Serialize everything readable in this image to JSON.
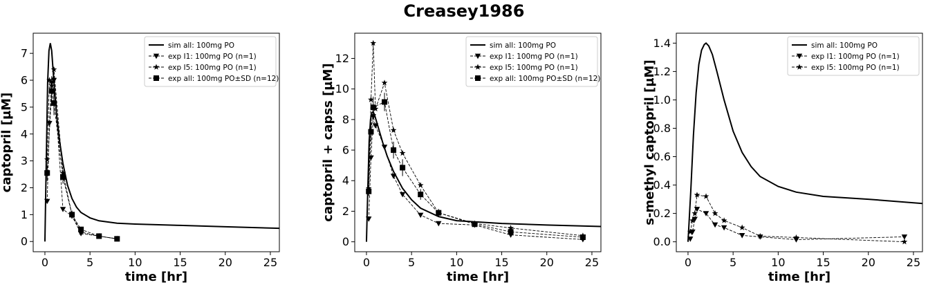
{
  "figure": {
    "title": "Creasey1986"
  },
  "chart_data": [
    {
      "type": "line",
      "xlabel": "time [hr]",
      "ylabel": "captopril [µM]",
      "xlim": [
        -1.3,
        26
      ],
      "ylim": [
        -0.38,
        7.75
      ],
      "xticks": [
        0,
        5,
        10,
        15,
        20,
        25
      ],
      "yticks": [
        0,
        1,
        2,
        3,
        4,
        5,
        6,
        7
      ],
      "legend_position": "top-right",
      "series": [
        {
          "name": "sim all: 100mg PO",
          "style": "solid",
          "marker": "none",
          "x": [
            0,
            0.15,
            0.3,
            0.45,
            0.6,
            0.75,
            0.9,
            1.1,
            1.3,
            1.6,
            2.0,
            2.5,
            3.0,
            3.5,
            4.0,
            5.0,
            6.0,
            8.0,
            10.0,
            15.0,
            20.0,
            26.0
          ],
          "y": [
            0,
            3.0,
            5.9,
            7.1,
            7.38,
            7.1,
            6.4,
            5.5,
            4.7,
            3.8,
            2.9,
            2.1,
            1.6,
            1.28,
            1.08,
            0.88,
            0.77,
            0.68,
            0.65,
            0.6,
            0.55,
            0.49
          ]
        },
        {
          "name": "exp I1: 100mg PO (n=1)",
          "style": "dashed",
          "marker": "triangle-down",
          "x": [
            0.25,
            0.5,
            0.75,
            1.0,
            2.0,
            3.0,
            4.0,
            6.0,
            8.0
          ],
          "y": [
            1.5,
            4.4,
            5.9,
            6.0,
            1.2,
            0.95,
            0.3,
            0.2,
            0.1
          ]
        },
        {
          "name": "exp I5: 100mg PO (n=1)",
          "style": "dashed",
          "marker": "star",
          "x": [
            0.25,
            0.5,
            0.75,
            1.0,
            2.0,
            3.0,
            4.0,
            6.0,
            8.0
          ],
          "y": [
            3.05,
            6.0,
            5.8,
            6.4,
            2.55,
            1.0,
            0.35,
            0.2,
            0.1
          ]
        },
        {
          "name": "exp all: 100mg PO±SD (n=12)",
          "style": "dashed",
          "marker": "square",
          "x": [
            0.25,
            0.75,
            1.0,
            2.0,
            3.0,
            4.0,
            6.0,
            8.0
          ],
          "y": [
            2.55,
            5.6,
            5.15,
            2.4,
            1.0,
            0.45,
            0.2,
            0.1
          ],
          "sd": [
            0.3,
            0.55,
            0.45,
            0.25,
            0.15,
            0.1,
            0.05,
            0.04
          ]
        }
      ]
    },
    {
      "type": "line",
      "xlabel": "time [hr]",
      "ylabel": "captopril + capss [µM]",
      "xlim": [
        -1.3,
        26
      ],
      "ylim": [
        -0.65,
        13.65
      ],
      "xticks": [
        0,
        5,
        10,
        15,
        20,
        25
      ],
      "yticks": [
        0,
        2,
        4,
        6,
        8,
        10,
        12
      ],
      "legend_position": "top-right",
      "series": [
        {
          "name": "sim all: 100mg PO",
          "style": "solid",
          "marker": "none",
          "x": [
            0,
            0.15,
            0.3,
            0.45,
            0.6,
            0.75,
            0.9,
            1.1,
            1.4,
            1.8,
            2.3,
            3.0,
            4.0,
            5.0,
            6.0,
            8.0,
            10.0,
            15.0,
            20.0,
            26.0
          ],
          "y": [
            0,
            3.5,
            6.6,
            8.0,
            8.45,
            8.5,
            8.3,
            7.9,
            7.3,
            6.5,
            5.6,
            4.6,
            3.5,
            2.75,
            2.2,
            1.65,
            1.38,
            1.2,
            1.1,
            1.0
          ]
        },
        {
          "name": "exp I1: 100mg PO (n=1)",
          "style": "dashed",
          "marker": "triangle-down",
          "x": [
            0.25,
            0.5,
            0.75,
            1.0,
            2.0,
            3.0,
            4.0,
            6.0,
            8.0,
            12.0,
            16.0,
            24.0
          ],
          "y": [
            1.5,
            5.5,
            8.2,
            7.6,
            6.2,
            4.3,
            3.1,
            1.75,
            1.2,
            1.1,
            0.45,
            0.15
          ]
        },
        {
          "name": "exp I5: 100mg PO (n=1)",
          "style": "dashed",
          "marker": "star",
          "x": [
            0.25,
            0.5,
            0.75,
            1.0,
            2.0,
            3.0,
            4.0,
            6.0,
            8.0,
            12.0,
            16.0,
            24.0
          ],
          "y": [
            3.5,
            9.3,
            13.0,
            8.7,
            10.4,
            7.3,
            5.8,
            3.7,
            1.9,
            1.2,
            0.9,
            0.4
          ]
        },
        {
          "name": "exp all: 100mg PO±SD (n=12)",
          "style": "dashed",
          "marker": "square",
          "x": [
            0.25,
            0.5,
            0.75,
            2.0,
            3.0,
            4.0,
            6.0,
            8.0,
            12.0,
            16.0,
            24.0
          ],
          "y": [
            3.3,
            7.2,
            8.8,
            9.15,
            6.0,
            4.85,
            3.1,
            1.9,
            1.15,
            0.65,
            0.3
          ],
          "sd": [
            0.3,
            0.6,
            0.7,
            0.6,
            0.55,
            0.55,
            0.35,
            0.25,
            0.15,
            0.1,
            0.1
          ]
        }
      ]
    },
    {
      "type": "line",
      "xlabel": "time [hr]",
      "ylabel": "s-methyl captopril [µM]",
      "xlim": [
        -1.3,
        26
      ],
      "ylim": [
        -0.07,
        1.47
      ],
      "xticks": [
        0,
        5,
        10,
        15,
        20,
        25
      ],
      "yticks": [
        0.0,
        0.2,
        0.4,
        0.6,
        0.8,
        1.0,
        1.2,
        1.4
      ],
      "legend_position": "top-right",
      "series": [
        {
          "name": "sim all: 100mg PO",
          "style": "solid",
          "marker": "none",
          "x": [
            0,
            0.3,
            0.6,
            0.9,
            1.2,
            1.5,
            1.8,
            2.0,
            2.3,
            2.7,
            3.2,
            4.0,
            5.0,
            6.0,
            7.0,
            8.0,
            10.0,
            12.0,
            15.0,
            20.0,
            26.0
          ],
          "y": [
            0,
            0.35,
            0.75,
            1.05,
            1.25,
            1.35,
            1.39,
            1.4,
            1.38,
            1.32,
            1.2,
            1.0,
            0.78,
            0.63,
            0.53,
            0.46,
            0.39,
            0.35,
            0.32,
            0.3,
            0.27
          ]
        },
        {
          "name": "exp I1: 100mg PO (n=1)",
          "style": "dashed",
          "marker": "triangle-down",
          "x": [
            0.25,
            0.5,
            0.75,
            1.0,
            2.0,
            3.0,
            4.0,
            6.0,
            8.0,
            12.0,
            24.0
          ],
          "y": [
            0.02,
            0.07,
            0.16,
            0.23,
            0.2,
            0.12,
            0.1,
            0.045,
            0.035,
            0.015,
            0.035
          ]
        },
        {
          "name": "exp I5: 100mg PO (n=1)",
          "style": "dashed",
          "marker": "star",
          "x": [
            0.25,
            0.5,
            0.75,
            1.0,
            2.0,
            3.0,
            4.0,
            6.0,
            8.0,
            12.0,
            24.0
          ],
          "y": [
            0.07,
            0.15,
            0.2,
            0.33,
            0.32,
            0.2,
            0.15,
            0.1,
            0.04,
            0.03,
            0.0
          ]
        }
      ]
    }
  ]
}
